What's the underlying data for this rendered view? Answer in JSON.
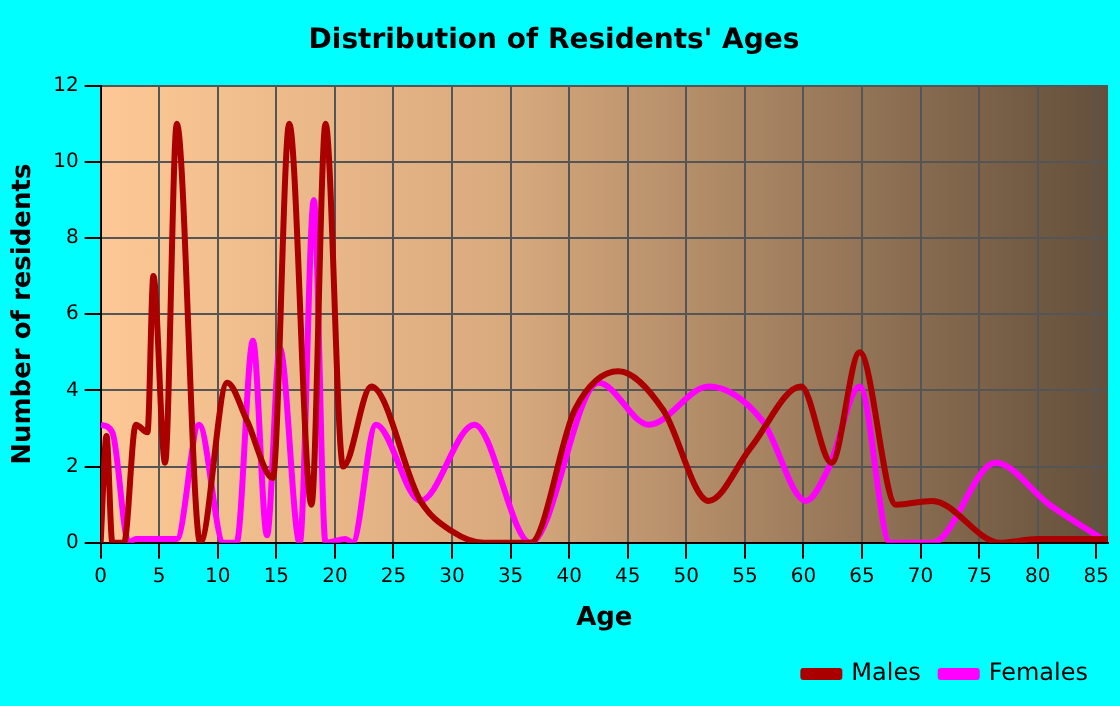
{
  "chart_data": {
    "type": "line",
    "title": "Distribution of Residents' Ages",
    "xlabel": "Age",
    "ylabel": "Number of residents",
    "xlim": [
      0,
      86
    ],
    "xticks": [
      0,
      5,
      10,
      15,
      20,
      25,
      30,
      35,
      40,
      45,
      50,
      55,
      60,
      65,
      70,
      75,
      80,
      85
    ],
    "ylim": [
      0,
      12
    ],
    "yticks": [
      0,
      2,
      4,
      6,
      8,
      10,
      12
    ],
    "grid": true,
    "legend": "bottom right",
    "series": [
      {
        "name": "Males",
        "color": "#aa0000",
        "x": [
          0,
          0.5,
          1,
          2,
          3,
          4,
          4.5,
          5.5,
          6.5,
          8.5,
          10.8,
          12.5,
          14.7,
          16.1,
          18,
          19.2,
          20.7,
          23.1,
          27.3,
          30,
          32.7,
          36.7,
          40.5,
          44.2,
          48,
          51.9,
          55.5,
          59.8,
          62.4,
          64.8,
          67.9,
          71,
          76.8,
          80,
          86
        ],
        "values": [
          0,
          2.8,
          0,
          0,
          3.1,
          2.9,
          7,
          2.1,
          11,
          0,
          4.2,
          3.2,
          1.7,
          11,
          1,
          11,
          2,
          4.1,
          1.1,
          0.3,
          0,
          0,
          3.5,
          4.5,
          3.5,
          1.1,
          2.5,
          4.1,
          2.1,
          5,
          1,
          1.1,
          0,
          0.1,
          0.1
        ]
      },
      {
        "name": "Females",
        "color": "#ff00ff",
        "x": [
          0,
          1,
          2.4,
          3,
          6.5,
          8.4,
          10.5,
          11.6,
          13,
          14.2,
          15.3,
          17,
          18.2,
          19.2,
          20.9,
          21.5,
          23.5,
          27.3,
          31.9,
          36.7,
          42.5,
          46.8,
          51.9,
          56.5,
          60.2,
          62.2,
          64.8,
          67.4,
          71,
          76.4,
          81,
          85.5
        ],
        "values": [
          3.1,
          2.9,
          0,
          0.1,
          0.1,
          3.1,
          0,
          0,
          5.3,
          0.2,
          5.1,
          0,
          9,
          0,
          0.1,
          0,
          3.1,
          1.1,
          3.1,
          0,
          4.2,
          3.1,
          4.1,
          3.2,
          1.1,
          2,
          4.1,
          0,
          0,
          2.1,
          1,
          0.1
        ]
      }
    ]
  }
}
